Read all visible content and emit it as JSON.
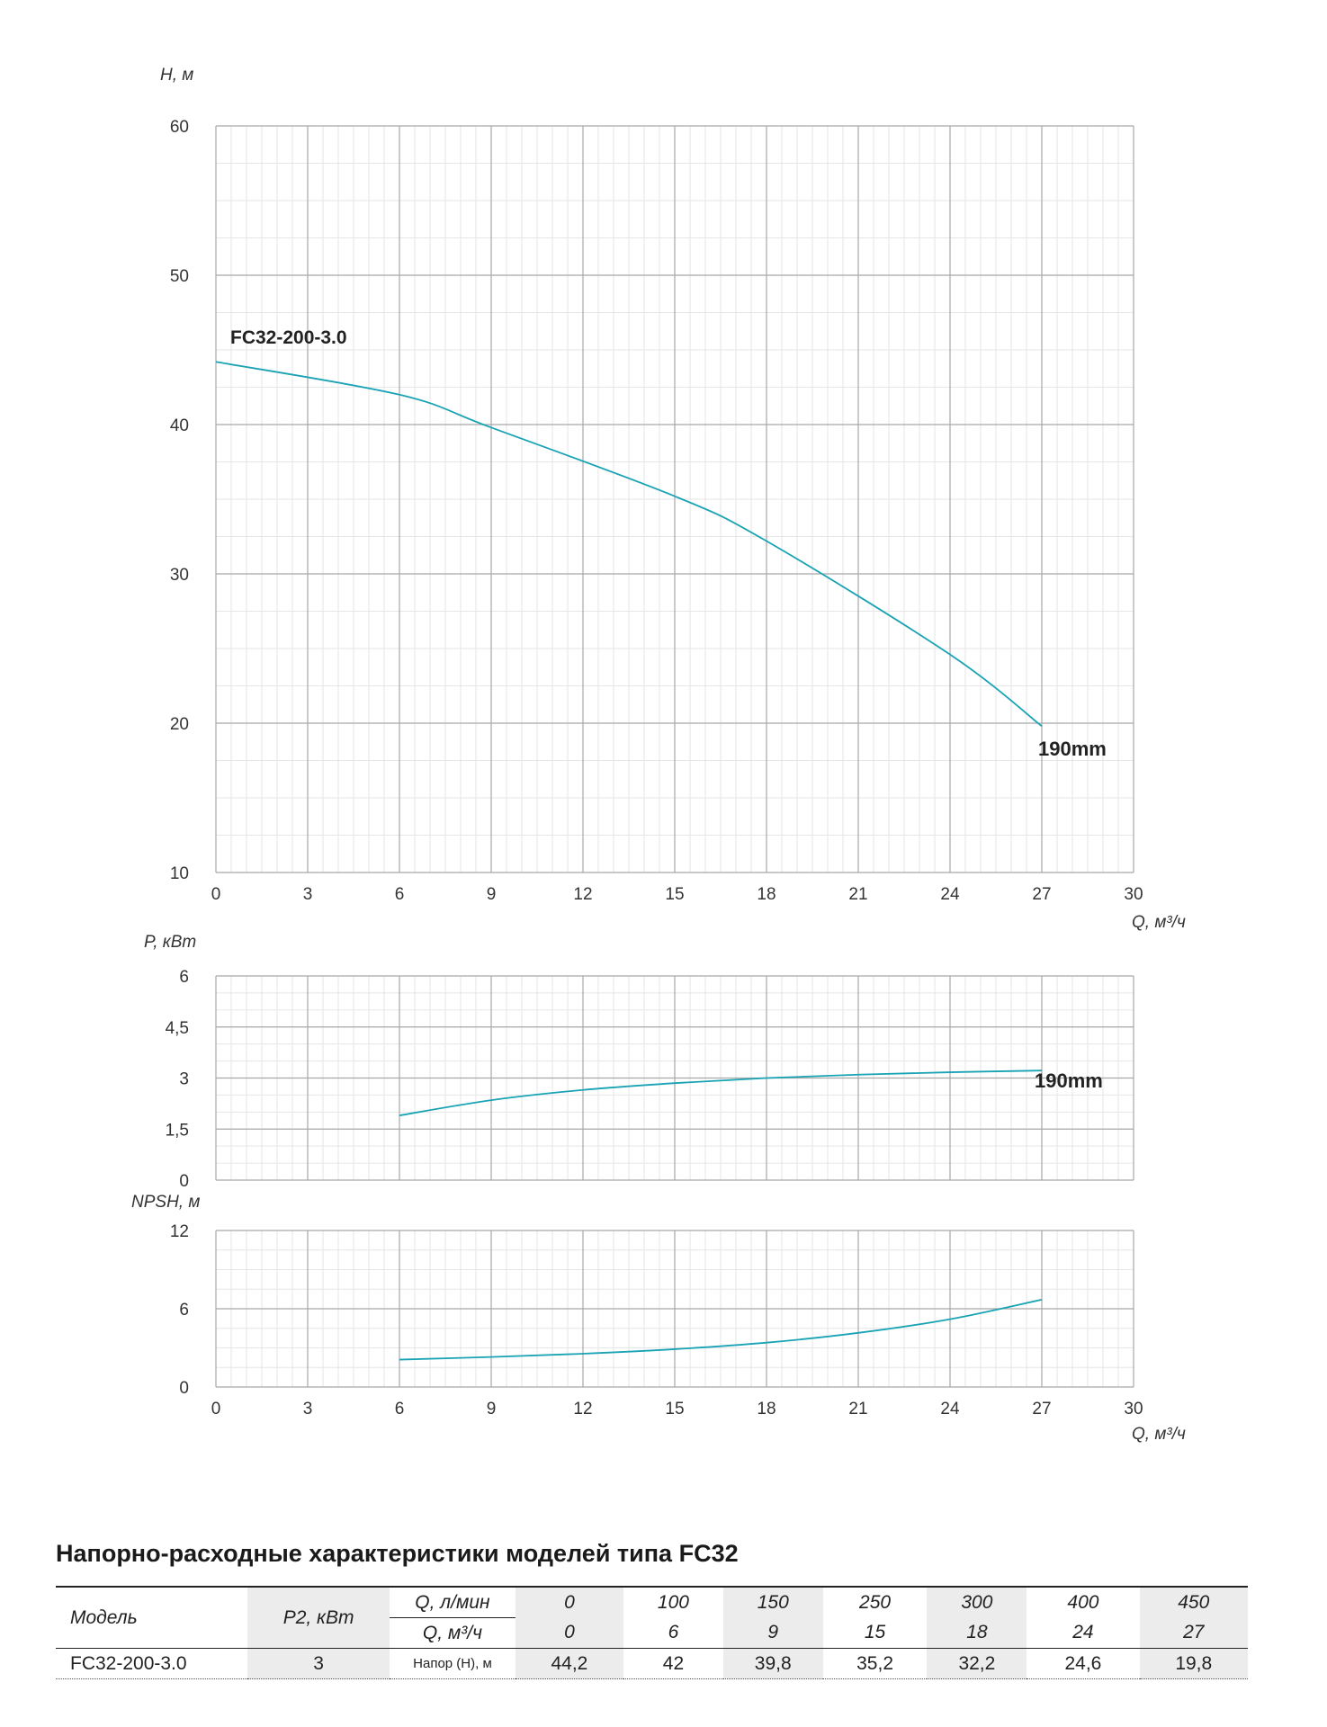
{
  "chart_data": [
    {
      "type": "line",
      "ylabel": "H, м",
      "xlabel": "Q, м³/ч",
      "xlim": [
        0,
        30
      ],
      "ylim": [
        10,
        60
      ],
      "x_ticks": [
        "0",
        "3",
        "6",
        "9",
        "12",
        "15",
        "18",
        "21",
        "24",
        "27",
        "30"
      ],
      "y_ticks": [
        "10",
        "20",
        "30",
        "40",
        "50",
        "60"
      ],
      "grid": true,
      "series": [
        {
          "name": "FC32-200-3.0",
          "x": [
            0,
            6,
            9,
            15,
            18,
            24,
            27
          ],
          "y": [
            44.2,
            42,
            39.8,
            35.2,
            32.2,
            24.6,
            19.8
          ]
        }
      ],
      "annotations": [
        "FC32-200-3.0",
        "190mm"
      ],
      "color": "#1aa3b4"
    },
    {
      "type": "line",
      "ylabel": "P, кВт",
      "xlim": [
        0,
        30
      ],
      "ylim": [
        0,
        6
      ],
      "y_ticks": [
        "0",
        "1,5",
        "3",
        "4,5",
        "6"
      ],
      "grid": true,
      "series": [
        {
          "x": [
            6,
            9,
            12,
            15,
            18,
            21,
            24,
            27
          ],
          "y": [
            1.9,
            2.35,
            2.65,
            2.85,
            3.0,
            3.1,
            3.17,
            3.22
          ]
        }
      ],
      "annotations": [
        "190mm"
      ],
      "color": "#1aa3b4"
    },
    {
      "type": "line",
      "ylabel": "NPSH, м",
      "xlabel": "Q, м³/ч",
      "xlim": [
        0,
        30
      ],
      "ylim": [
        0,
        12
      ],
      "x_ticks": [
        "0",
        "3",
        "6",
        "9",
        "12",
        "15",
        "18",
        "21",
        "24",
        "27",
        "30"
      ],
      "y_ticks": [
        "0",
        "6",
        "12"
      ],
      "grid": true,
      "series": [
        {
          "x": [
            6,
            9,
            12,
            15,
            18,
            21,
            24,
            27
          ],
          "y": [
            2.1,
            2.3,
            2.55,
            2.9,
            3.4,
            4.15,
            5.2,
            6.7
          ]
        }
      ],
      "color": "#1aa3b4"
    }
  ],
  "table": {
    "title": "Напорно-расходные характеристики моделей типа FC32",
    "col_model": "Модель",
    "col_p2": "P2, кВт",
    "row_q_lmin_label": "Q, л/мин",
    "row_q_m3h_label": "Q, м³/ч",
    "q_lmin": [
      "0",
      "100",
      "150",
      "250",
      "300",
      "400",
      "450"
    ],
    "q_m3h": [
      "0",
      "6",
      "9",
      "15",
      "18",
      "24",
      "27"
    ],
    "model": "FC32-200-3.0",
    "p2": "3",
    "head_label": "Напор (Н), м",
    "head": [
      "44,2",
      "42",
      "39,8",
      "35,2",
      "32,2",
      "24,6",
      "19,8"
    ]
  }
}
